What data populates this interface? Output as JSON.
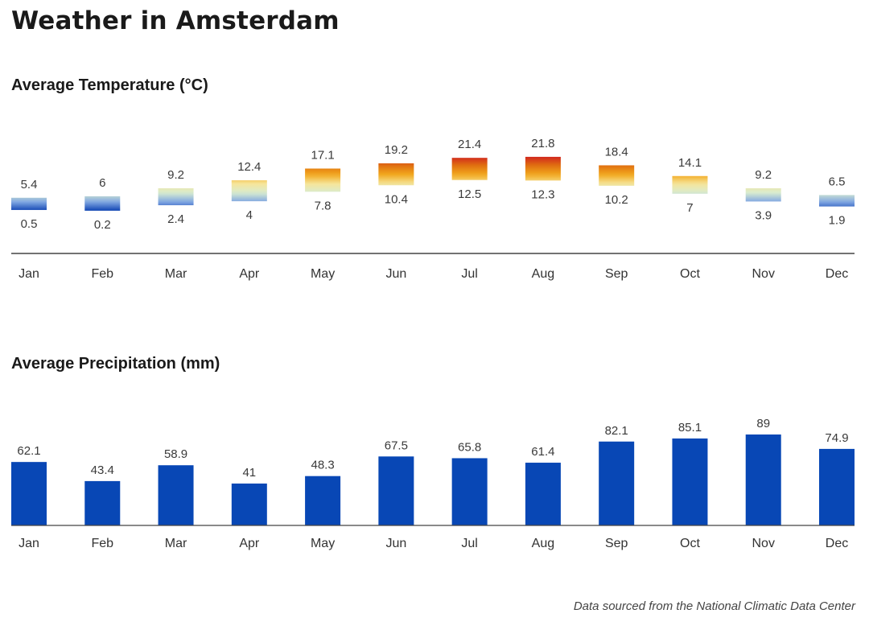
{
  "page": {
    "title": "Weather in Amsterdam",
    "source_note": "Data sourced from the National Climatic Data Center"
  },
  "colors": {
    "bar": "#0847b5",
    "axis": "#444444",
    "temp_gradient": [
      "#0a3fb0",
      "#7fa6e2",
      "#d8ecd0",
      "#f6e59a",
      "#f2a81d",
      "#e07010",
      "#d0241f"
    ]
  },
  "chart_data": [
    {
      "id": "temperature",
      "type": "bar",
      "variant": "floating-range",
      "title": "Average Temperature (°C)",
      "xlabel": "",
      "ylabel": "",
      "categories": [
        "Jan",
        "Feb",
        "Mar",
        "Apr",
        "May",
        "Jun",
        "Jul",
        "Aug",
        "Sep",
        "Oct",
        "Nov",
        "Dec"
      ],
      "high": [
        5.4,
        6,
        9.2,
        12.4,
        17.1,
        19.2,
        21.4,
        21.8,
        18.4,
        14.1,
        9.2,
        6.5
      ],
      "low": [
        0.5,
        0.2,
        2.4,
        4,
        7.8,
        10.4,
        12.5,
        12.3,
        10.2,
        7,
        3.9,
        1.9
      ],
      "grid": false,
      "legend": "none"
    },
    {
      "id": "precipitation",
      "type": "bar",
      "title": "Average Precipitation (mm)",
      "xlabel": "",
      "ylabel": "",
      "categories": [
        "Jan",
        "Feb",
        "Mar",
        "Apr",
        "May",
        "Jun",
        "Jul",
        "Aug",
        "Sep",
        "Oct",
        "Nov",
        "Dec"
      ],
      "values": [
        62.1,
        43.4,
        58.9,
        41,
        48.3,
        67.5,
        65.8,
        61.4,
        82.1,
        85.1,
        89,
        74.9
      ],
      "ylim": [
        0,
        100
      ],
      "grid": false,
      "legend": "none"
    }
  ]
}
